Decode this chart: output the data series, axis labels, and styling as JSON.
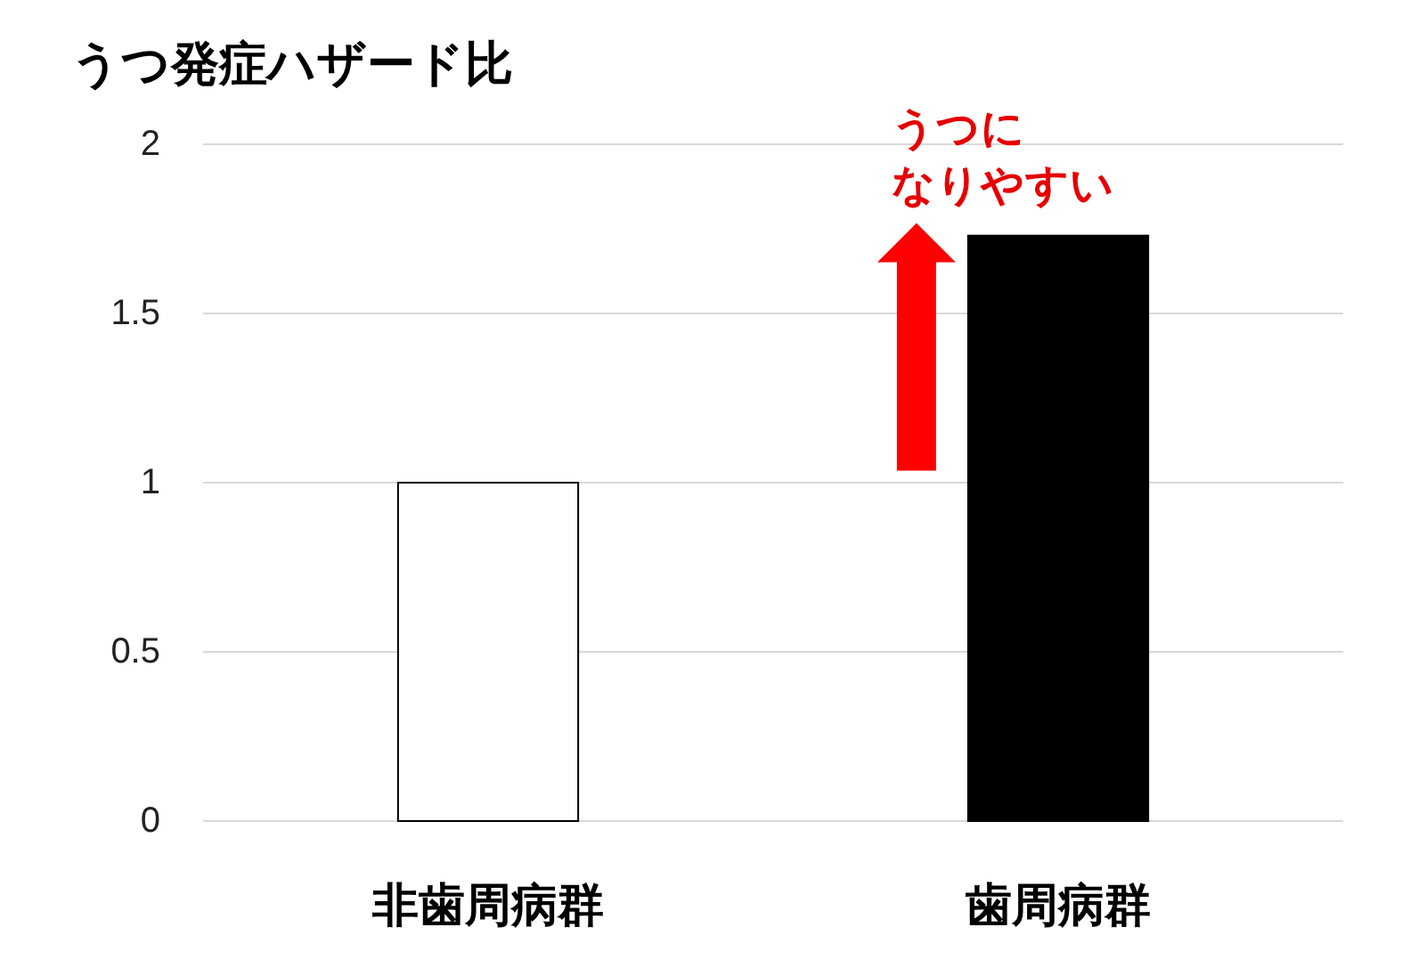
{
  "chart_data": {
    "type": "bar",
    "title": "うつ発症ハザード比",
    "categories": [
      "非歯周病群",
      "歯周病群"
    ],
    "values": [
      1,
      1.73
    ],
    "colors": [
      "#ffffff",
      "#000000"
    ],
    "ylim": [
      0,
      2
    ],
    "yticks": [
      0,
      0.5,
      1,
      1.5,
      2
    ],
    "grid": "y",
    "annotations": [
      "うつに",
      "なりやすい"
    ]
  }
}
